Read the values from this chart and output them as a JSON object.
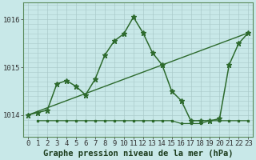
{
  "title": "Graphe pression niveau de la mer (hPa)",
  "bg_color": "#c8e8e8",
  "grid_color": "#b0d0d0",
  "line_color": "#2d6a2d",
  "x_ticks": [
    0,
    1,
    2,
    3,
    4,
    5,
    6,
    7,
    8,
    9,
    10,
    11,
    12,
    13,
    14,
    15,
    16,
    17,
    18,
    19,
    20,
    21,
    22,
    23
  ],
  "ylim": [
    1013.55,
    1016.35
  ],
  "yticks": [
    1014,
    1015,
    1016
  ],
  "series1_x": [
    0,
    1,
    2,
    3,
    4,
    5,
    6,
    7,
    8,
    9,
    10,
    11,
    12,
    13,
    14,
    15,
    16,
    17,
    18,
    19,
    20,
    21,
    22,
    23
  ],
  "series1_y": [
    1014.0,
    1014.05,
    1014.1,
    1014.65,
    1014.72,
    1014.6,
    1014.42,
    1014.75,
    1015.25,
    1015.55,
    1015.7,
    1016.05,
    1015.72,
    1015.3,
    1015.05,
    1014.5,
    1014.3,
    1013.88,
    1013.88,
    1013.88,
    1013.92,
    1015.05,
    1015.5,
    1015.72
  ],
  "series2_x": [
    0,
    23
  ],
  "series2_y": [
    1014.0,
    1015.72
  ],
  "series3_x": [
    1,
    2,
    3,
    4,
    5,
    6,
    7,
    8,
    9,
    10,
    11,
    12,
    13,
    14,
    15,
    16,
    17,
    18,
    19,
    20,
    21,
    22,
    23
  ],
  "series3_y": [
    1013.88,
    1013.88,
    1013.88,
    1013.88,
    1013.88,
    1013.88,
    1013.88,
    1013.88,
    1013.88,
    1013.88,
    1013.88,
    1013.88,
    1013.88,
    1013.88,
    1013.88,
    1013.82,
    1013.82,
    1013.82,
    1013.88,
    1013.88,
    1013.88,
    1013.88,
    1013.88
  ],
  "tick_fontsize": 6.5,
  "title_fontsize": 7.5
}
